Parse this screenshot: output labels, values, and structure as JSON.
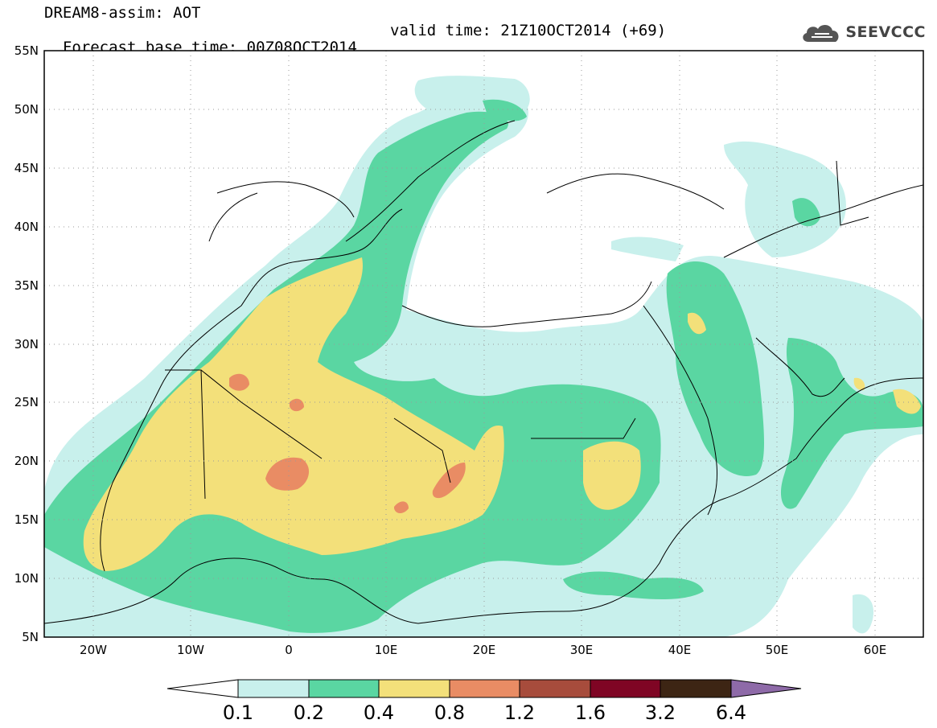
{
  "header": {
    "line1": "DREAM8-assim: AOT",
    "line2": "Forecast base time: 00Z08OCT2014",
    "valid": "valid time: 21Z10OCT2014 (+69)"
  },
  "brand": {
    "name": "SEEVCCC",
    "icon": "cloud-icon"
  },
  "map": {
    "lat_labels": [
      "55N",
      "50N",
      "45N",
      "40N",
      "35N",
      "30N",
      "25N",
      "20N",
      "15N",
      "10N",
      "5N"
    ],
    "lon_labels": [
      "20W",
      "10W",
      "0",
      "10E",
      "20E",
      "30E",
      "40E",
      "50E",
      "60E"
    ],
    "colors": {
      "c01": "#c8f0ec",
      "c02": "#5ad6a2",
      "c04": "#f3e07a",
      "c08": "#e98c64",
      "c12": "#a74c3c",
      "c16": "#7f0524",
      "c32": "#3d2514",
      "c64": "#8e6aa8"
    }
  },
  "colorbar": {
    "labels": [
      "0.1",
      "0.2",
      "0.4",
      "0.8",
      "1.2",
      "1.6",
      "3.2",
      "6.4"
    ],
    "colors": [
      "#c8f0ec",
      "#5ad6a2",
      "#f3e07a",
      "#e98c64",
      "#a74c3c",
      "#7f0524",
      "#3d2514"
    ],
    "under_color": "#ffffff",
    "over_color": "#8e6aa8"
  }
}
